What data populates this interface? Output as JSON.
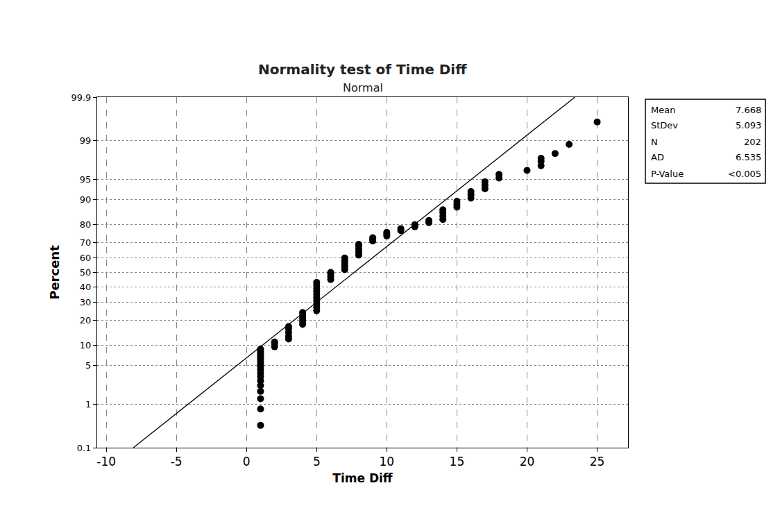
{
  "chart_data": {
    "type": "scatter",
    "title": "Normality test of Time Diff",
    "subtitle": "Normal",
    "x_label": "Time Diff",
    "y_label": "Percent",
    "grid": true,
    "xlim": [
      -10.65,
      27.2
    ],
    "xticks": [
      -10,
      -5,
      0,
      5,
      10,
      15,
      20,
      25
    ],
    "ylim": [
      0.1,
      99.9
    ],
    "yticks": [
      0.1,
      1,
      5,
      10,
      20,
      30,
      40,
      50,
      60,
      70,
      80,
      90,
      95,
      99,
      99.9
    ],
    "series": [
      {
        "name": "Time Diff",
        "color": "#000000",
        "marker": "circle",
        "x": [
          1,
          1,
          1,
          1,
          1,
          1,
          1,
          1,
          1,
          1,
          1,
          1,
          1,
          1,
          1,
          1,
          1,
          1,
          2,
          2,
          2,
          3,
          3,
          3,
          3,
          3,
          4,
          4,
          4,
          4,
          4,
          5,
          5,
          5,
          5,
          5,
          5,
          5,
          5,
          5,
          5,
          6,
          6,
          6,
          6,
          7,
          7,
          7,
          7,
          7,
          8,
          8,
          8,
          8,
          8,
          9,
          9,
          9,
          10,
          10,
          10,
          11,
          11,
          12,
          12,
          13,
          13,
          14,
          14,
          14,
          14,
          15,
          15,
          15,
          16,
          16,
          16,
          17,
          17,
          17,
          18,
          18,
          20,
          21,
          21,
          21,
          22,
          23,
          25
        ],
        "values": [
          0.35,
          0.8,
          1.3,
          1.8,
          2.3,
          2.8,
          3.3,
          3.8,
          4.3,
          4.8,
          5.3,
          5.8,
          6.3,
          6.8,
          7.3,
          7.8,
          8.3,
          8.8,
          9.5,
          10.5,
          11,
          12,
          13,
          14.5,
          16,
          17,
          18,
          19.5,
          21,
          22.5,
          24,
          25,
          27,
          29,
          31,
          33,
          35,
          37,
          39,
          41,
          43,
          45,
          47,
          49,
          50,
          52,
          54,
          56,
          58,
          60,
          62,
          64,
          66,
          68,
          69,
          71,
          72,
          73,
          74,
          75,
          76,
          77,
          78,
          79,
          80,
          81,
          82,
          82.5,
          84,
          85.5,
          86.5,
          87.5,
          88.5,
          89.5,
          90.5,
          91.5,
          92.3,
          93,
          93.8,
          94.5,
          95.2,
          95.8,
          96.4,
          97,
          97.5,
          97.8,
          98.2,
          98.8,
          99.6
        ]
      }
    ],
    "fit_line": {
      "type": "line",
      "color": "#000000",
      "line_style": "solid",
      "x": [
        -8.07,
        23.41
      ],
      "values": [
        0.1,
        99.9
      ]
    },
    "stats": [
      {
        "label": "Mean",
        "value": 7.668
      },
      {
        "label": "StDev",
        "value": 5.093
      },
      {
        "label": "N",
        "value": 202
      },
      {
        "label": "AD",
        "value": 6.535
      },
      {
        "label": "P-Value",
        "value": "<0.005"
      }
    ]
  }
}
